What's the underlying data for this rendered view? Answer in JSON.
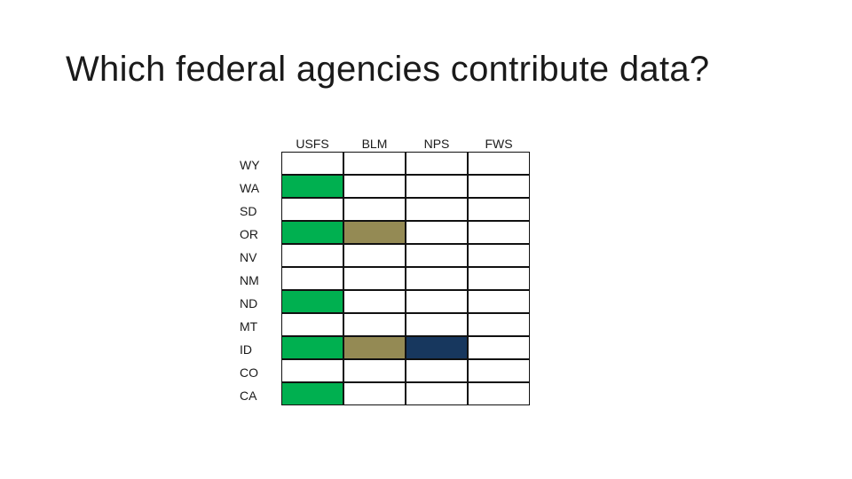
{
  "title": "Which federal agencies contribute data?",
  "agencies": [
    "USFS",
    "BLM",
    "NPS",
    "FWS"
  ],
  "states": [
    "WY",
    "WA",
    "SD",
    "OR",
    "NV",
    "NM",
    "ND",
    "MT",
    "ID",
    "CO",
    "CA"
  ],
  "colors": {
    "empty": "#ffffff",
    "USFS": "#00b050",
    "BLM": "#948a54",
    "NPS": "#17375e"
  },
  "contributions": {
    "WY": [],
    "WA": [
      "USFS"
    ],
    "SD": [],
    "OR": [
      "USFS",
      "BLM"
    ],
    "NV": [],
    "NM": [],
    "ND": [
      "USFS"
    ],
    "MT": [],
    "ID": [
      "USFS",
      "BLM",
      "NPS"
    ],
    "CO": [],
    "CA": [
      "USFS"
    ]
  }
}
